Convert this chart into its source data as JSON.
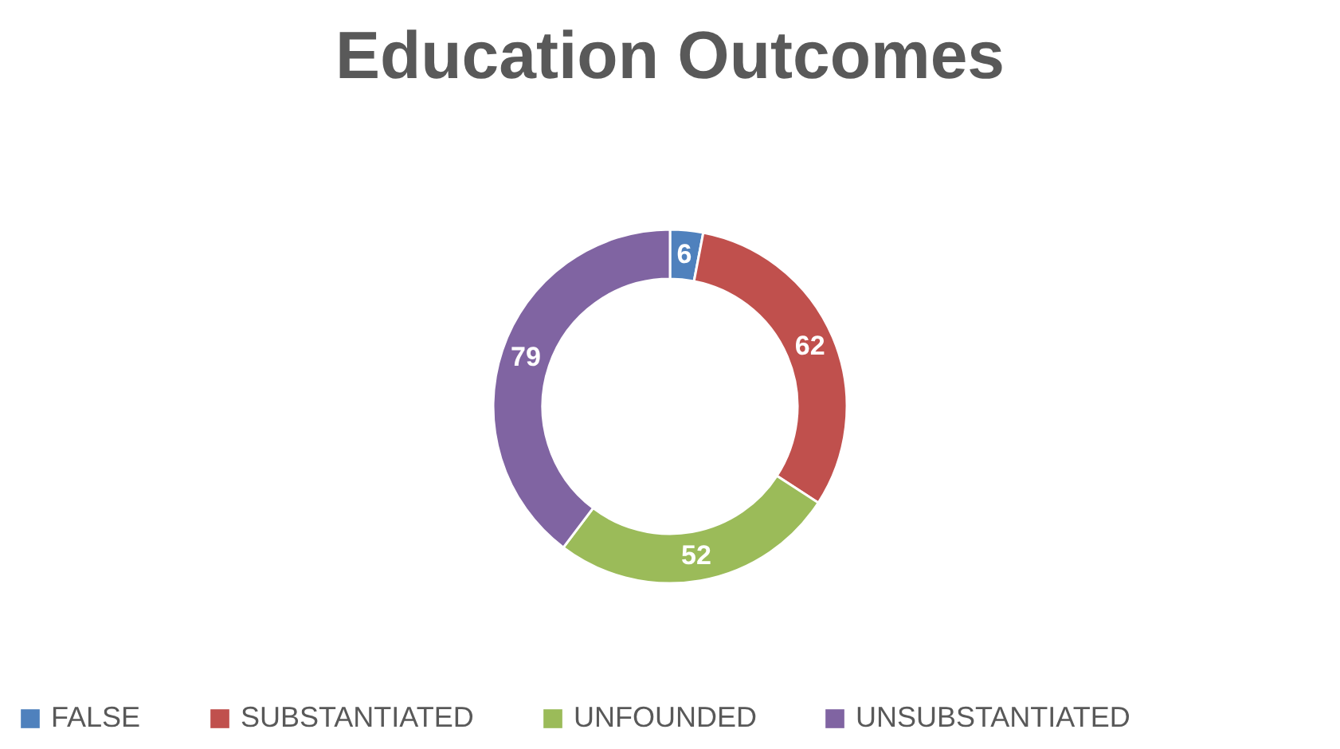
{
  "chart_data": {
    "type": "donut",
    "title": "Education Outcomes",
    "categories": [
      "FALSE",
      "SUBSTANTIATED",
      "UNFOUNDED",
      "UNSUBSTANTIATED"
    ],
    "values": [
      6,
      62,
      52,
      79
    ],
    "colors": [
      "#4f81bd",
      "#c0504d",
      "#9bbb59",
      "#8064a2"
    ],
    "data_labels": true,
    "legend": "bottom"
  }
}
